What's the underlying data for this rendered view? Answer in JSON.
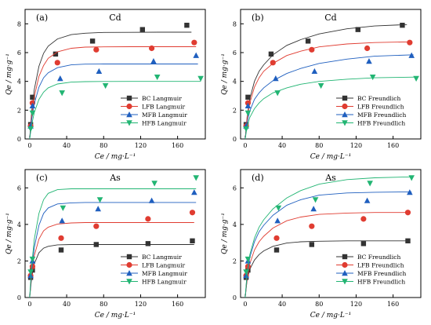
{
  "chart_data": [
    {
      "type": "scatter",
      "panel_label": "(a)",
      "title": "Cd",
      "xlabel": "Ce / mg·L⁻¹",
      "ylabel": "Qe / mg·g⁻¹",
      "xlim": [
        -5,
        190
      ],
      "ylim": [
        0,
        9
      ],
      "xticks": [
        0,
        40,
        80,
        120,
        160
      ],
      "yticks": [
        0,
        2,
        4,
        6,
        8
      ],
      "legend_position": "bottom-right",
      "series": [
        {
          "name": "BC Langmuir",
          "color": "#333333",
          "marker": "square",
          "x": [
            1,
            3,
            28,
            68,
            122,
            170
          ],
          "y": [
            1.0,
            2.9,
            5.9,
            6.8,
            7.6,
            7.9
          ],
          "fit_x": [
            0,
            2,
            5,
            10,
            15,
            20,
            30,
            45,
            60,
            80,
            110,
            140,
            175
          ],
          "fit_y": [
            0,
            1.85,
            3.45,
            5.05,
            5.95,
            6.45,
            6.95,
            7.25,
            7.35,
            7.4,
            7.41,
            7.42,
            7.42
          ]
        },
        {
          "name": "LFB Langmuir",
          "color": "#e03c31",
          "marker": "circle",
          "x": [
            1,
            3,
            30,
            72,
            132,
            178
          ],
          "y": [
            0.9,
            2.5,
            5.3,
            6.2,
            6.3,
            6.7
          ],
          "fit_x": [
            0,
            2,
            5,
            10,
            15,
            20,
            30,
            45,
            60,
            80,
            110,
            140,
            180
          ],
          "fit_y": [
            0,
            1.55,
            2.95,
            4.35,
            5.1,
            5.6,
            6.05,
            6.3,
            6.38,
            6.4,
            6.41,
            6.41,
            6.41
          ]
        },
        {
          "name": "MFB Langmuir",
          "color": "#1f5fbf",
          "marker": "triangle",
          "x": [
            1,
            3,
            33,
            75,
            134,
            180
          ],
          "y": [
            0.9,
            2.3,
            4.2,
            4.7,
            5.4,
            5.8
          ],
          "fit_x": [
            0,
            2,
            5,
            10,
            15,
            20,
            30,
            45,
            60,
            80,
            110,
            140,
            182
          ],
          "fit_y": [
            0,
            1.3,
            2.45,
            3.6,
            4.25,
            4.6,
            4.95,
            5.15,
            5.2,
            5.21,
            5.21,
            5.21,
            5.21
          ]
        },
        {
          "name": "HFB Langmuir",
          "color": "#22b573",
          "marker": "triangle-down",
          "x": [
            1,
            3,
            35,
            82,
            138,
            185
          ],
          "y": [
            0.7,
            1.8,
            3.2,
            3.7,
            4.3,
            4.2
          ],
          "fit_x": [
            0,
            2,
            5,
            10,
            15,
            20,
            30,
            45,
            60,
            80,
            110,
            140,
            185
          ],
          "fit_y": [
            0,
            0.95,
            1.85,
            2.75,
            3.25,
            3.55,
            3.82,
            3.95,
            3.98,
            3.99,
            4.0,
            4.0,
            4.0
          ]
        }
      ]
    },
    {
      "type": "scatter",
      "panel_label": "(b)",
      "title": "Cd",
      "xlabel": "Ce / mg·L⁻¹",
      "ylabel": "Qe / mg·g⁻¹",
      "xlim": [
        -5,
        190
      ],
      "ylim": [
        0,
        9
      ],
      "xticks": [
        0,
        40,
        80,
        120,
        160
      ],
      "yticks": [
        0,
        2,
        4,
        6,
        8
      ],
      "legend_position": "bottom-right",
      "series": [
        {
          "name": "BC Freundlich",
          "color": "#333333",
          "marker": "square",
          "x": [
            1,
            3,
            28,
            68,
            122,
            170
          ],
          "y": [
            1.0,
            2.9,
            5.9,
            6.8,
            7.6,
            7.9
          ],
          "fit_x": [
            0,
            2,
            5,
            10,
            15,
            20,
            30,
            45,
            60,
            80,
            110,
            140,
            175
          ],
          "fit_y": [
            0,
            1.5,
            2.8,
            4.0,
            4.7,
            5.15,
            5.85,
            6.5,
            6.9,
            7.3,
            7.65,
            7.85,
            7.95
          ]
        },
        {
          "name": "LFB Freundlich",
          "color": "#e03c31",
          "marker": "circle",
          "x": [
            1,
            3,
            30,
            72,
            132,
            178
          ],
          "y": [
            0.9,
            2.5,
            5.3,
            6.2,
            6.3,
            6.7
          ],
          "fit_x": [
            0,
            2,
            5,
            10,
            15,
            20,
            30,
            45,
            60,
            80,
            110,
            140,
            180
          ],
          "fit_y": [
            0,
            1.4,
            2.5,
            3.6,
            4.25,
            4.7,
            5.25,
            5.8,
            6.1,
            6.4,
            6.6,
            6.7,
            6.75
          ]
        },
        {
          "name": "MFB Freundlich",
          "color": "#1f5fbf",
          "marker": "triangle",
          "x": [
            1,
            3,
            33,
            75,
            134,
            180
          ],
          "y": [
            0.9,
            2.3,
            4.2,
            4.7,
            5.4,
            5.8
          ],
          "fit_x": [
            0,
            2,
            5,
            10,
            15,
            20,
            30,
            45,
            60,
            80,
            110,
            140,
            182
          ],
          "fit_y": [
            0,
            1.1,
            1.95,
            2.75,
            3.2,
            3.55,
            4.05,
            4.55,
            4.9,
            5.25,
            5.55,
            5.75,
            5.85
          ]
        },
        {
          "name": "HFB Freundlich",
          "color": "#22b573",
          "marker": "triangle-down",
          "x": [
            1,
            3,
            35,
            82,
            138,
            185
          ],
          "y": [
            0.7,
            1.8,
            3.2,
            3.7,
            4.3,
            4.2
          ],
          "fit_x": [
            0,
            2,
            5,
            10,
            15,
            20,
            30,
            45,
            60,
            80,
            110,
            140,
            185
          ],
          "fit_y": [
            0,
            0.85,
            1.5,
            2.1,
            2.5,
            2.8,
            3.2,
            3.55,
            3.8,
            4.0,
            4.15,
            4.25,
            4.3
          ]
        }
      ]
    },
    {
      "type": "scatter",
      "panel_label": "(c)",
      "title": "As",
      "xlabel": "Ce / mg·L⁻¹",
      "ylabel": "Qe / mg·g⁻¹",
      "xlim": [
        -5,
        190
      ],
      "ylim": [
        0,
        7
      ],
      "xticks": [
        0,
        40,
        80,
        120,
        160
      ],
      "yticks": [
        0,
        2,
        4,
        6
      ],
      "legend_position": "bottom-right",
      "series": [
        {
          "name": "BC Langmuir",
          "color": "#333333",
          "marker": "square",
          "x": [
            1,
            3,
            34,
            72,
            128,
            176
          ],
          "y": [
            1.1,
            1.5,
            2.6,
            2.9,
            2.95,
            3.1
          ],
          "fit_x": [
            0,
            2,
            5,
            10,
            15,
            20,
            30,
            45,
            60,
            80,
            110,
            140,
            178
          ],
          "fit_y": [
            0,
            1.05,
            1.85,
            2.45,
            2.7,
            2.8,
            2.88,
            2.9,
            2.9,
            2.9,
            2.9,
            2.9,
            2.9
          ]
        },
        {
          "name": "LFB Langmuir",
          "color": "#e03c31",
          "marker": "circle",
          "x": [
            1,
            3,
            34,
            72,
            128,
            176
          ],
          "y": [
            1.2,
            1.7,
            3.25,
            3.9,
            4.3,
            4.65
          ],
          "fit_x": [
            0,
            2,
            5,
            10,
            15,
            20,
            30,
            45,
            60,
            80,
            110,
            140,
            178
          ],
          "fit_y": [
            0,
            1.25,
            2.3,
            3.2,
            3.65,
            3.85,
            4.02,
            4.08,
            4.1,
            4.1,
            4.1,
            4.1,
            4.1
          ]
        },
        {
          "name": "MFB Langmuir",
          "color": "#1f5fbf",
          "marker": "triangle",
          "x": [
            1,
            3,
            35,
            74,
            132,
            178
          ],
          "y": [
            1.2,
            2.0,
            4.2,
            4.85,
            5.3,
            5.75
          ],
          "fit_x": [
            0,
            2,
            5,
            10,
            15,
            20,
            30,
            45,
            60,
            80,
            110,
            140,
            180
          ],
          "fit_y": [
            0,
            1.45,
            2.75,
            3.95,
            4.6,
            4.9,
            5.12,
            5.18,
            5.2,
            5.2,
            5.2,
            5.2,
            5.2
          ]
        },
        {
          "name": "HFB Langmuir",
          "color": "#22b573",
          "marker": "triangle-down",
          "x": [
            1,
            3,
            36,
            76,
            135,
            180
          ],
          "y": [
            1.4,
            2.1,
            4.9,
            5.35,
            6.25,
            6.55
          ],
          "fit_x": [
            0,
            2,
            5,
            10,
            15,
            20,
            30,
            45,
            60,
            80,
            110,
            140,
            180
          ],
          "fit_y": [
            0,
            1.7,
            3.2,
            4.6,
            5.35,
            5.7,
            5.9,
            5.95,
            5.95,
            5.95,
            5.95,
            5.95,
            5.95
          ]
        }
      ]
    },
    {
      "type": "scatter",
      "panel_label": "(d)",
      "title": "As",
      "xlabel": "Ce / mg·L⁻¹",
      "ylabel": "Qe / mg·g⁻¹",
      "xlim": [
        -5,
        190
      ],
      "ylim": [
        0,
        7
      ],
      "xticks": [
        0,
        40,
        80,
        120,
        160
      ],
      "yticks": [
        0,
        2,
        4,
        6
      ],
      "legend_position": "bottom-right",
      "series": [
        {
          "name": "BC Freundlich",
          "color": "#333333",
          "marker": "square",
          "x": [
            1,
            3,
            34,
            72,
            128,
            176
          ],
          "y": [
            1.1,
            1.5,
            2.6,
            2.9,
            2.95,
            3.1
          ],
          "fit_x": [
            0,
            2,
            5,
            10,
            15,
            20,
            30,
            45,
            60,
            80,
            110,
            140,
            178
          ],
          "fit_y": [
            0,
            0.95,
            1.55,
            2.05,
            2.35,
            2.55,
            2.8,
            2.98,
            3.05,
            3.08,
            3.1,
            3.1,
            3.1
          ]
        },
        {
          "name": "LFB Freundlich",
          "color": "#e03c31",
          "marker": "circle",
          "x": [
            1,
            3,
            34,
            72,
            128,
            176
          ],
          "y": [
            1.2,
            1.7,
            3.25,
            3.9,
            4.3,
            4.65
          ],
          "fit_x": [
            0,
            2,
            5,
            10,
            15,
            20,
            30,
            45,
            60,
            80,
            110,
            140,
            178
          ],
          "fit_y": [
            0,
            1.05,
            1.85,
            2.6,
            3.05,
            3.35,
            3.8,
            4.2,
            4.4,
            4.55,
            4.62,
            4.65,
            4.65
          ]
        },
        {
          "name": "MFB Freundlich",
          "color": "#1f5fbf",
          "marker": "triangle",
          "x": [
            1,
            3,
            35,
            74,
            132,
            178
          ],
          "y": [
            1.2,
            2.0,
            4.2,
            4.85,
            5.3,
            5.75
          ],
          "fit_x": [
            0,
            2,
            5,
            10,
            15,
            20,
            30,
            45,
            60,
            80,
            110,
            140,
            180
          ],
          "fit_y": [
            0,
            1.25,
            2.2,
            3.05,
            3.6,
            3.95,
            4.5,
            5.05,
            5.35,
            5.6,
            5.72,
            5.76,
            5.78
          ]
        },
        {
          "name": "HFB Freundlich",
          "color": "#22b573",
          "marker": "triangle-down",
          "x": [
            1,
            3,
            36,
            76,
            135,
            180
          ],
          "y": [
            1.4,
            2.1,
            4.9,
            5.35,
            6.25,
            6.55
          ],
          "fit_x": [
            0,
            2,
            5,
            10,
            15,
            20,
            30,
            45,
            60,
            80,
            110,
            140,
            180
          ],
          "fit_y": [
            0,
            1.35,
            2.35,
            3.25,
            3.85,
            4.25,
            4.85,
            5.45,
            5.85,
            6.2,
            6.45,
            6.55,
            6.6
          ]
        }
      ]
    }
  ]
}
